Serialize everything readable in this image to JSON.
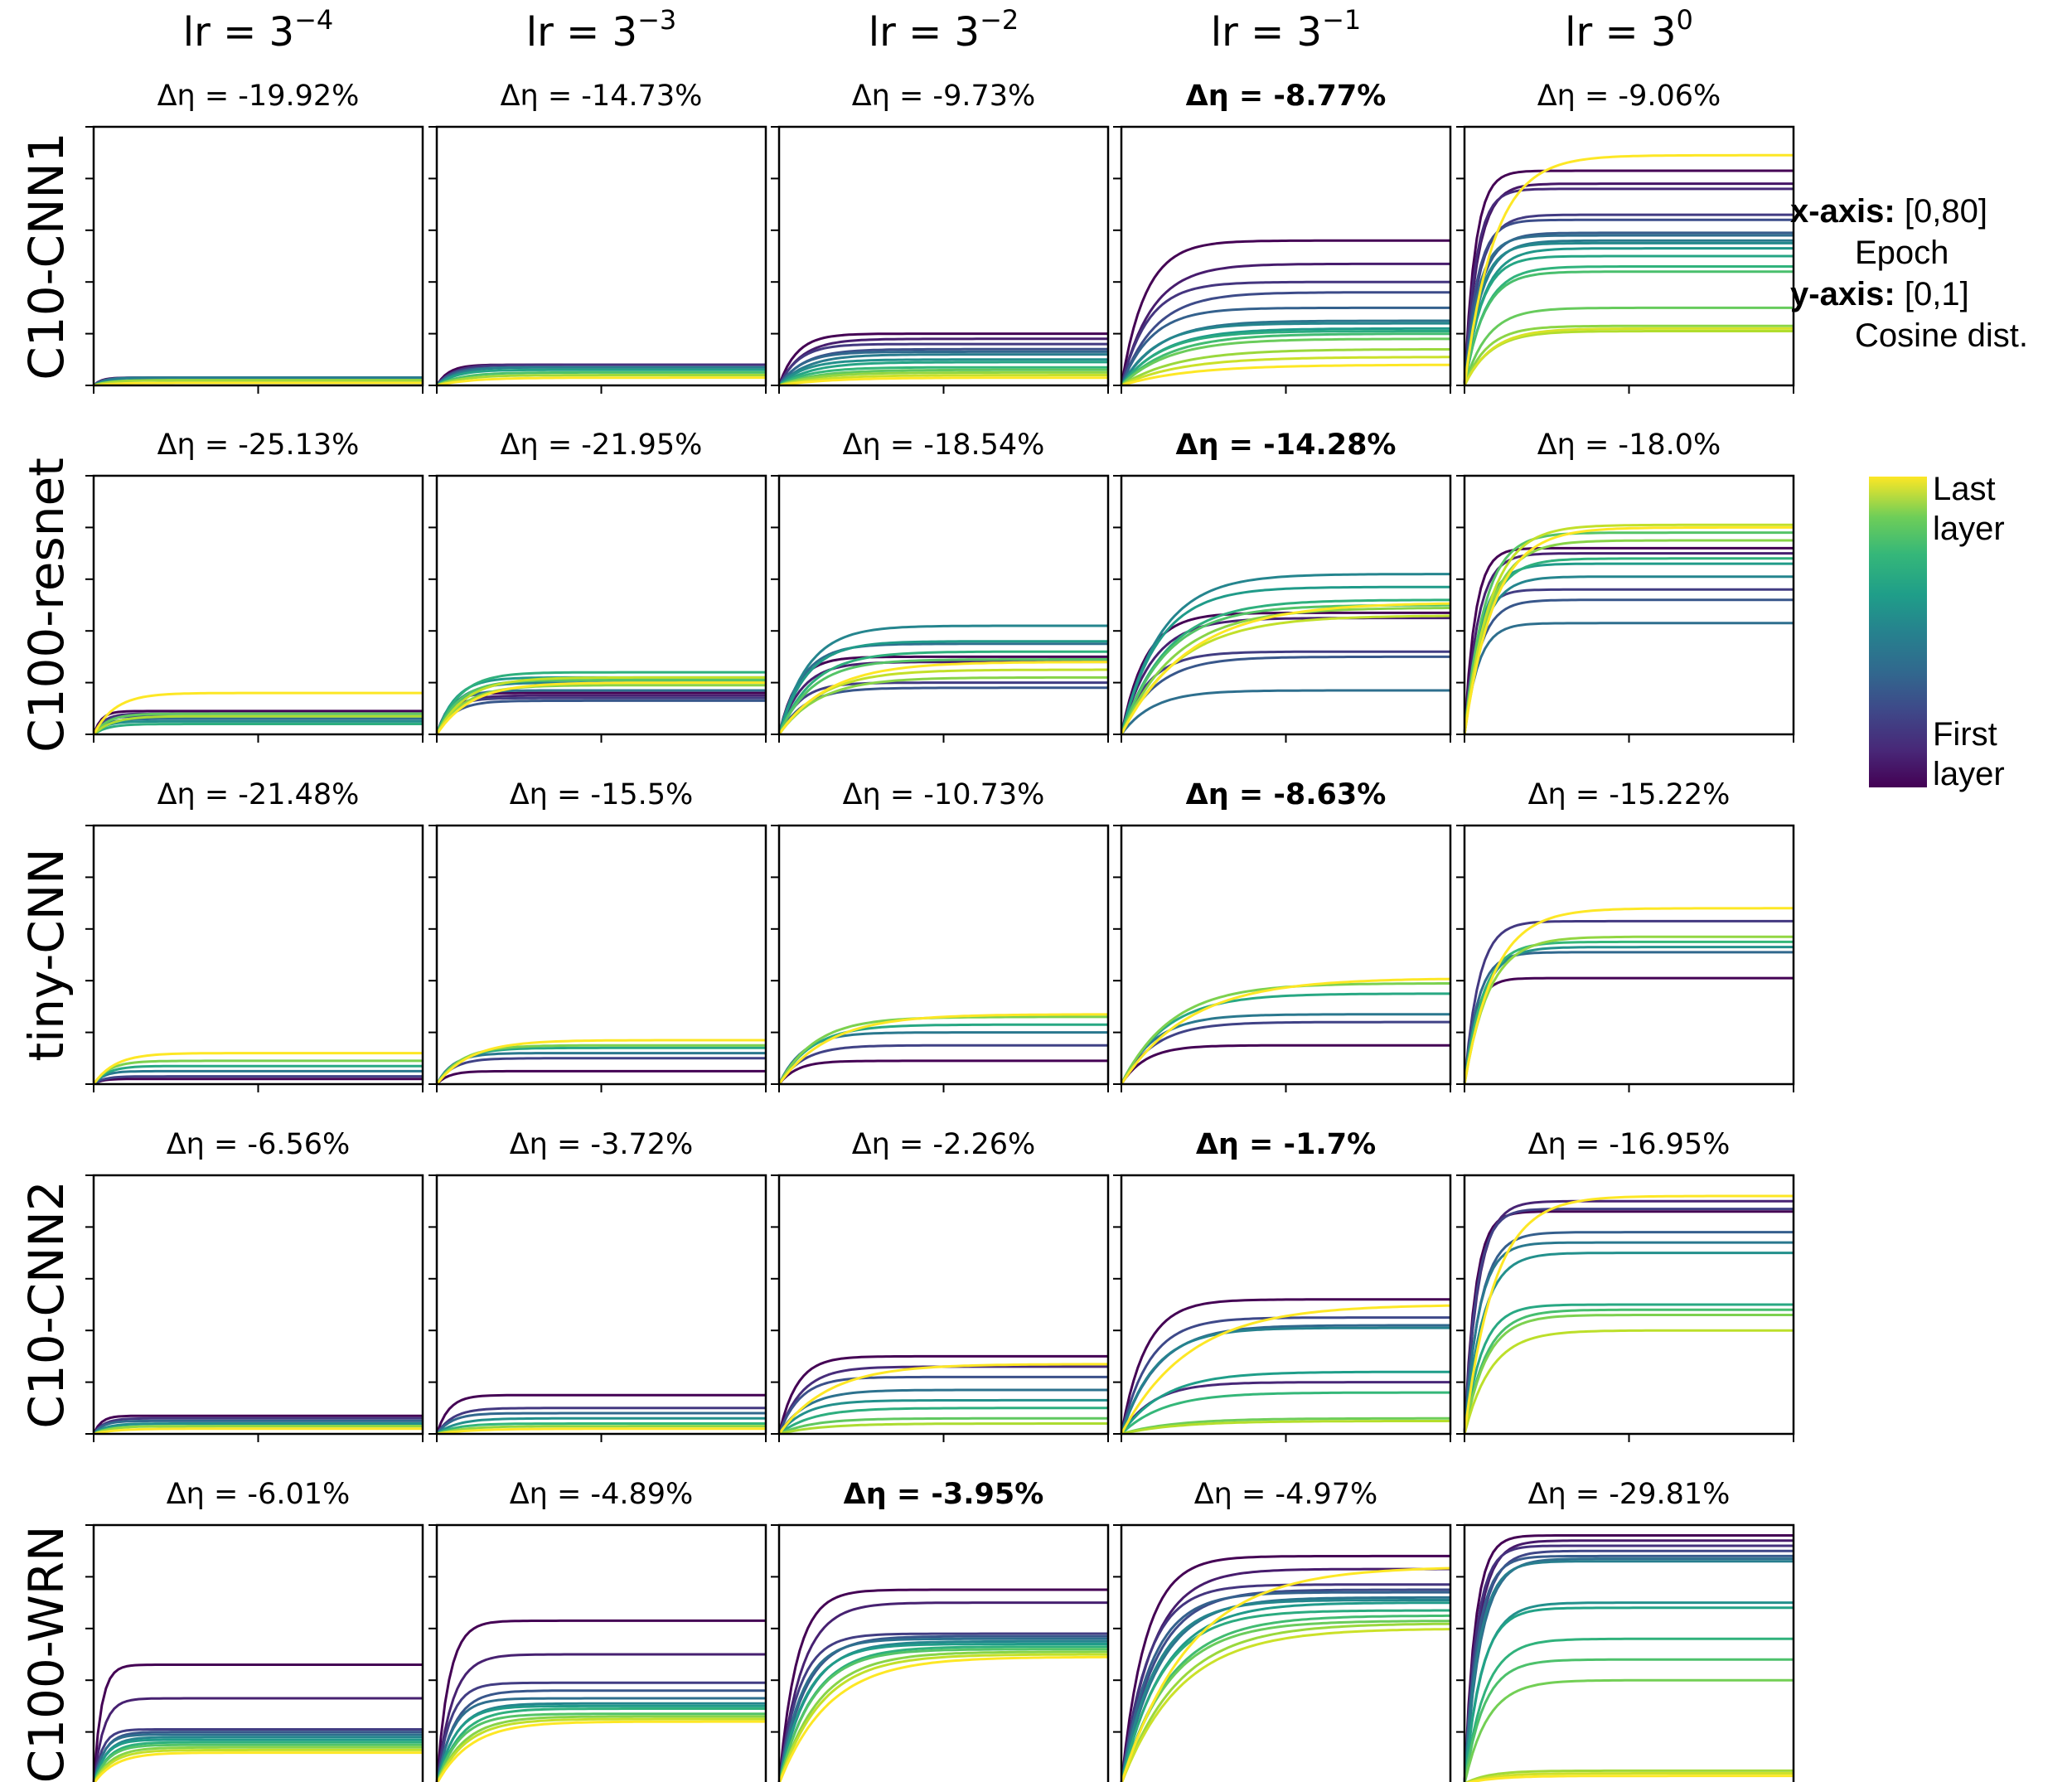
{
  "chart_data": {
    "type": "line",
    "columns": [
      "lr = 3^-4",
      "lr = 3^-3",
      "lr = 3^-2",
      "lr = 3^-1",
      "lr = 3^0"
    ],
    "column_base": "lr = 3",
    "column_exponents": [
      "−4",
      "−3",
      "−2",
      "−1",
      "0"
    ],
    "rows": [
      "C10-CNN1",
      "C100-resnet",
      "tiny-CNN",
      "C10-CNN2",
      "C100-WRN"
    ],
    "panel_titles": [
      [
        {
          "text": "Δη = -19.92%",
          "bold": false
        },
        {
          "text": "Δη = -14.73%",
          "bold": false
        },
        {
          "text": "Δη = -9.73%",
          "bold": false
        },
        {
          "text": "Δη = -8.77%",
          "bold": true
        },
        {
          "text": "Δη = -9.06%",
          "bold": false
        }
      ],
      [
        {
          "text": "Δη = -25.13%",
          "bold": false
        },
        {
          "text": "Δη = -21.95%",
          "bold": false
        },
        {
          "text": "Δη = -18.54%",
          "bold": false
        },
        {
          "text": "Δη = -14.28%",
          "bold": true
        },
        {
          "text": "Δη = -18.0%",
          "bold": false
        }
      ],
      [
        {
          "text": "Δη = -21.48%",
          "bold": false
        },
        {
          "text": "Δη = -15.5%",
          "bold": false
        },
        {
          "text": "Δη = -10.73%",
          "bold": false
        },
        {
          "text": "Δη = -8.63%",
          "bold": true
        },
        {
          "text": "Δη = -15.22%",
          "bold": false
        }
      ],
      [
        {
          "text": "Δη = -6.56%",
          "bold": false
        },
        {
          "text": "Δη = -3.72%",
          "bold": false
        },
        {
          "text": "Δη = -2.26%",
          "bold": false
        },
        {
          "text": "Δη = -1.7%",
          "bold": true
        },
        {
          "text": "Δη = -16.95%",
          "bold": false
        }
      ],
      [
        {
          "text": "Δη = -6.01%",
          "bold": false
        },
        {
          "text": "Δη = -4.89%",
          "bold": false
        },
        {
          "text": "Δη = -3.95%",
          "bold": true
        },
        {
          "text": "Δη = -4.97%",
          "bold": false
        },
        {
          "text": "Δη = -29.81%",
          "bold": false
        }
      ]
    ],
    "xlim": [
      0,
      80
    ],
    "ylim": [
      0,
      1
    ],
    "xlabel": "Epoch",
    "ylabel": "Cosine dist.",
    "grid": false,
    "colormap": "viridis",
    "colorbar_range": [
      "First layer",
      "Last layer"
    ],
    "panel_final_values_first_to_last_layer": [
      [
        [
          0.03,
          0.03,
          0.03,
          0.03,
          0.02,
          0.02,
          0.02,
          0.01
        ],
        [
          0.08,
          0.08,
          0.07,
          0.07,
          0.06,
          0.05,
          0.04,
          0.03
        ],
        [
          0.2,
          0.18,
          0.16,
          0.14,
          0.13,
          0.12,
          0.1,
          0.09,
          0.07,
          0.06,
          0.05,
          0.04,
          0.03
        ],
        [
          0.56,
          0.47,
          0.4,
          0.36,
          0.3,
          0.25,
          0.24,
          0.22,
          0.21,
          0.2,
          0.18,
          0.14,
          0.11,
          0.08
        ],
        [
          0.83,
          0.78,
          0.76,
          0.66,
          0.64,
          0.59,
          0.58,
          0.56,
          0.55,
          0.53,
          0.5,
          0.46,
          0.44,
          0.3,
          0.23,
          0.21,
          0.22,
          0.89
        ]
      ],
      [
        [
          0.09,
          0.08,
          0.07,
          0.06,
          0.05,
          0.04,
          0.08,
          0.07,
          0.16
        ],
        [
          0.16,
          0.15,
          0.14,
          0.13,
          0.17,
          0.2,
          0.22,
          0.24,
          0.21,
          0.19,
          0.22,
          0.2
        ],
        [
          0.3,
          0.28,
          0.2,
          0.18,
          0.35,
          0.42,
          0.36,
          0.32,
          0.29,
          0.22,
          0.25,
          0.28
        ],
        [
          0.47,
          0.45,
          0.32,
          0.3,
          0.17,
          0.62,
          0.57,
          0.52,
          0.5,
          0.49,
          0.46,
          0.51
        ],
        [
          0.72,
          0.7,
          0.56,
          0.52,
          0.43,
          0.61,
          0.66,
          0.68,
          0.78,
          0.75,
          0.81,
          0.8
        ]
      ],
      [
        [
          0.02,
          0.03,
          0.05,
          0.07,
          0.09,
          0.12
        ],
        [
          0.05,
          0.1,
          0.12,
          0.14,
          0.15,
          0.17
        ],
        [
          0.09,
          0.15,
          0.2,
          0.23,
          0.26,
          0.27
        ],
        [
          0.15,
          0.24,
          0.27,
          0.35,
          0.39,
          0.41
        ],
        [
          0.41,
          0.63,
          0.51,
          0.53,
          0.55,
          0.57,
          0.68
        ]
      ],
      [
        [
          0.07,
          0.06,
          0.05,
          0.04,
          0.03,
          0.03,
          0.02
        ],
        [
          0.15,
          0.1,
          0.08,
          0.06,
          0.04,
          0.03,
          0.02
        ],
        [
          0.3,
          0.26,
          0.22,
          0.17,
          0.13,
          0.1,
          0.06,
          0.04,
          0.27
        ],
        [
          0.52,
          0.2,
          0.45,
          0.42,
          0.41,
          0.24,
          0.16,
          0.06,
          0.05,
          0.5
        ],
        [
          0.86,
          0.9,
          0.87,
          0.78,
          0.74,
          0.7,
          0.5,
          0.48,
          0.46,
          0.4,
          0.92
        ]
      ],
      [
        [
          0.46,
          0.33,
          0.21,
          0.2,
          0.19,
          0.18,
          0.17,
          0.16,
          0.15,
          0.14,
          0.13,
          0.12
        ],
        [
          0.63,
          0.5,
          0.39,
          0.36,
          0.33,
          0.31,
          0.3,
          0.29,
          0.27,
          0.26,
          0.25,
          0.24
        ],
        [
          0.75,
          0.7,
          0.58,
          0.57,
          0.56,
          0.55,
          0.54,
          0.53,
          0.52,
          0.51,
          0.5,
          0.49
        ],
        [
          0.88,
          0.83,
          0.77,
          0.75,
          0.74,
          0.72,
          0.71,
          0.7,
          0.67,
          0.65,
          0.63,
          0.62,
          0.6,
          0.84
        ],
        [
          0.96,
          0.94,
          0.92,
          0.9,
          0.88,
          0.87,
          0.86,
          0.7,
          0.68,
          0.56,
          0.48,
          0.4,
          0.05,
          0.04,
          0.03
        ]
      ]
    ]
  },
  "legend": {
    "x_axis_title": "x-axis:",
    "x_axis_range": "[0,80]",
    "x_axis_name": "Epoch",
    "y_axis_title": "y-axis:",
    "y_axis_range": "[0,1]",
    "y_axis_name": "Cosine dist.",
    "colorbar_top_line1": "Last",
    "colorbar_top_line2": "layer",
    "colorbar_bottom_line1": "First",
    "colorbar_bottom_line2": "layer"
  }
}
